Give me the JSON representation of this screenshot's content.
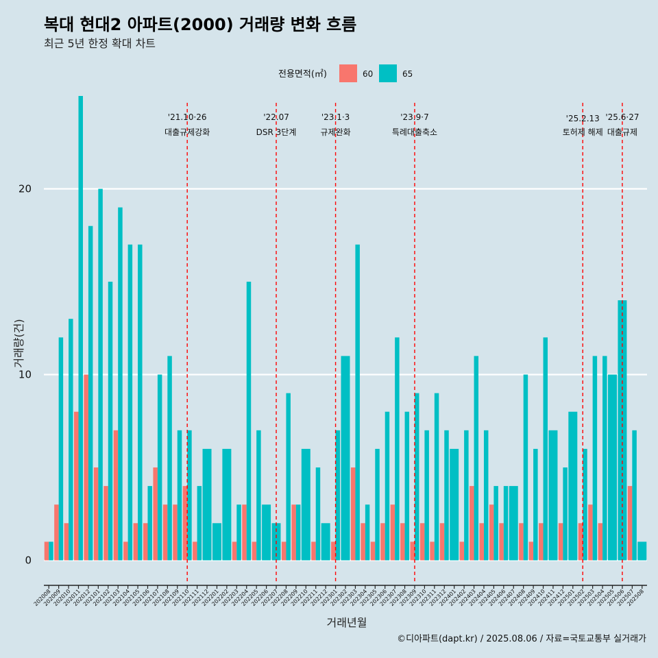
{
  "chart_data": {
    "type": "bar",
    "title": "복대 현대2 아파트(2000) 거래량 변화 흐름",
    "subtitle": "최근 5년 한정 확대 차트",
    "xlabel": "거래년월",
    "ylabel": "거래량(건)",
    "legend_title": "전용면적(㎡)",
    "legend_position": "top",
    "ylim": [
      -1.2,
      25
    ],
    "yticks": [
      0,
      10,
      20
    ],
    "grid": true,
    "categories": [
      "202008",
      "202009",
      "202010",
      "202011",
      "202012",
      "202101",
      "202102",
      "202103",
      "202104",
      "202105",
      "202106",
      "202107",
      "202108",
      "202109",
      "202110",
      "202111",
      "202112",
      "202201",
      "202202",
      "202203",
      "202204",
      "202205",
      "202206",
      "202207",
      "202208",
      "202209",
      "202210",
      "202211",
      "202212",
      "202301",
      "202302",
      "202303",
      "202304",
      "202305",
      "202306",
      "202307",
      "202308",
      "202309",
      "202310",
      "202311",
      "202312",
      "202401",
      "202402",
      "202403",
      "202404",
      "202405",
      "202406",
      "202407",
      "202408",
      "202409",
      "202410",
      "202411",
      "202412",
      "202501",
      "202502",
      "202503",
      "202504",
      "202505",
      "202506",
      "202507",
      "202508"
    ],
    "series": [
      {
        "name": "60",
        "color": "#f8766d",
        "values": [
          1,
          3,
          2,
          8,
          10,
          5,
          4,
          7,
          1,
          2,
          2,
          5,
          3,
          3,
          4,
          1,
          null,
          null,
          null,
          1,
          3,
          1,
          null,
          null,
          1,
          3,
          null,
          1,
          null,
          1,
          null,
          5,
          2,
          1,
          2,
          3,
          2,
          1,
          2,
          1,
          2,
          null,
          1,
          4,
          2,
          3,
          2,
          null,
          2,
          1,
          2,
          null,
          2,
          null,
          2,
          3,
          2,
          null,
          null,
          4,
          null
        ]
      },
      {
        "name": "65",
        "color": "#00bfc4",
        "values": [
          1,
          12,
          13,
          25,
          18,
          20,
          15,
          19,
          17,
          17,
          4,
          10,
          11,
          7,
          7,
          4,
          6,
          2,
          6,
          3,
          15,
          7,
          3,
          2,
          9,
          3,
          6,
          5,
          2,
          7,
          11,
          17,
          3,
          6,
          8,
          12,
          8,
          9,
          7,
          9,
          7,
          6,
          7,
          11,
          7,
          4,
          4,
          4,
          10,
          6,
          12,
          7,
          5,
          8,
          6,
          11,
          11,
          10,
          14,
          7,
          1
        ]
      }
    ],
    "annotations": [
      {
        "date": "'21.10·26",
        "label": "대출규제강화",
        "at": "202110"
      },
      {
        "date": "'22.07",
        "label": "DSR 3단계",
        "at": "202207"
      },
      {
        "date": "'23.1·3",
        "label": "규제완화",
        "at": "202301"
      },
      {
        "date": "'23.9·7",
        "label": "특례대출축소",
        "at": "202309"
      },
      {
        "date": "'25.2.13",
        "label": "토허제 해제",
        "at": "202502"
      },
      {
        "date": "'25.6·27",
        "label": "대출규제",
        "at": "202506"
      }
    ]
  },
  "caption": "©디아파트(dapt.kr) / 2025.08.06 / 자료=국토교통부 실거래가"
}
